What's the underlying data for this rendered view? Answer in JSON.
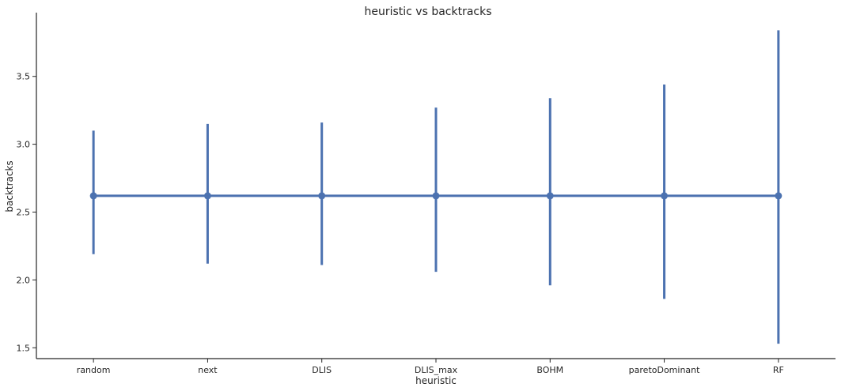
{
  "chart_data": {
    "type": "pointplot",
    "title": "heuristic vs backtracks",
    "xlabel": "heuristic",
    "ylabel": "backtracks",
    "categories": [
      "random",
      "next",
      "DLIS",
      "DLIS_max",
      "BOHM",
      "paretoDominant",
      "RF"
    ],
    "yticks": [
      "1.5",
      "2.0",
      "2.5",
      "3.0",
      "3.5"
    ],
    "series": [
      {
        "values": [
          2.62,
          2.62,
          2.62,
          2.62,
          2.62,
          2.62,
          2.62
        ],
        "ci_low": [
          2.19,
          2.12,
          2.11,
          2.06,
          1.96,
          1.86,
          1.53
        ],
        "ci_high": [
          3.1,
          3.15,
          3.16,
          3.27,
          3.34,
          3.44,
          3.84
        ]
      }
    ],
    "ylim": [
      1.42,
      3.97
    ],
    "grid": false,
    "color": "#4c72b0"
  }
}
